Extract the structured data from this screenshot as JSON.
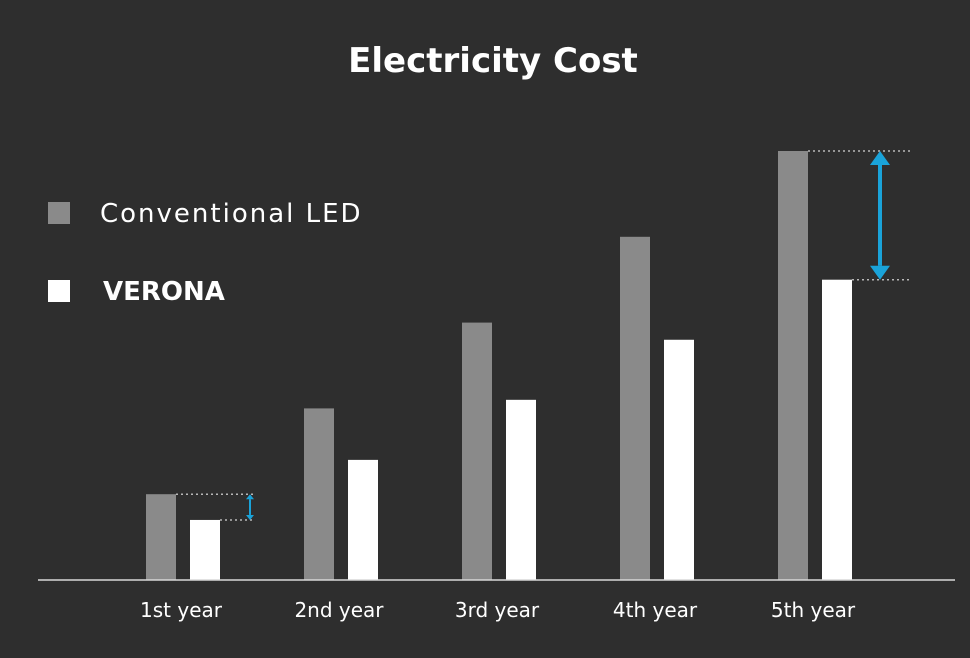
{
  "chart_data": {
    "type": "bar",
    "title": "Electricity Cost",
    "categories": [
      "1st year",
      "2nd year",
      "3rd year",
      "4th year",
      "5th year"
    ],
    "series": [
      {
        "name": "Conventional LED",
        "color": "#8a8a8a",
        "values": [
          1,
          2,
          3,
          4,
          5
        ]
      },
      {
        "name": "VERONA",
        "color": "#ffffff",
        "values": [
          0.7,
          1.4,
          2.1,
          2.8,
          3.5
        ]
      }
    ],
    "ylim": [
      0,
      5
    ],
    "grid": false,
    "legend_position": "left",
    "annotations": [
      {
        "type": "difference-arrow",
        "category": "1st year",
        "color": "#1aa3d9"
      },
      {
        "type": "difference-arrow",
        "category": "5th year",
        "color": "#1aa3d9"
      }
    ]
  }
}
